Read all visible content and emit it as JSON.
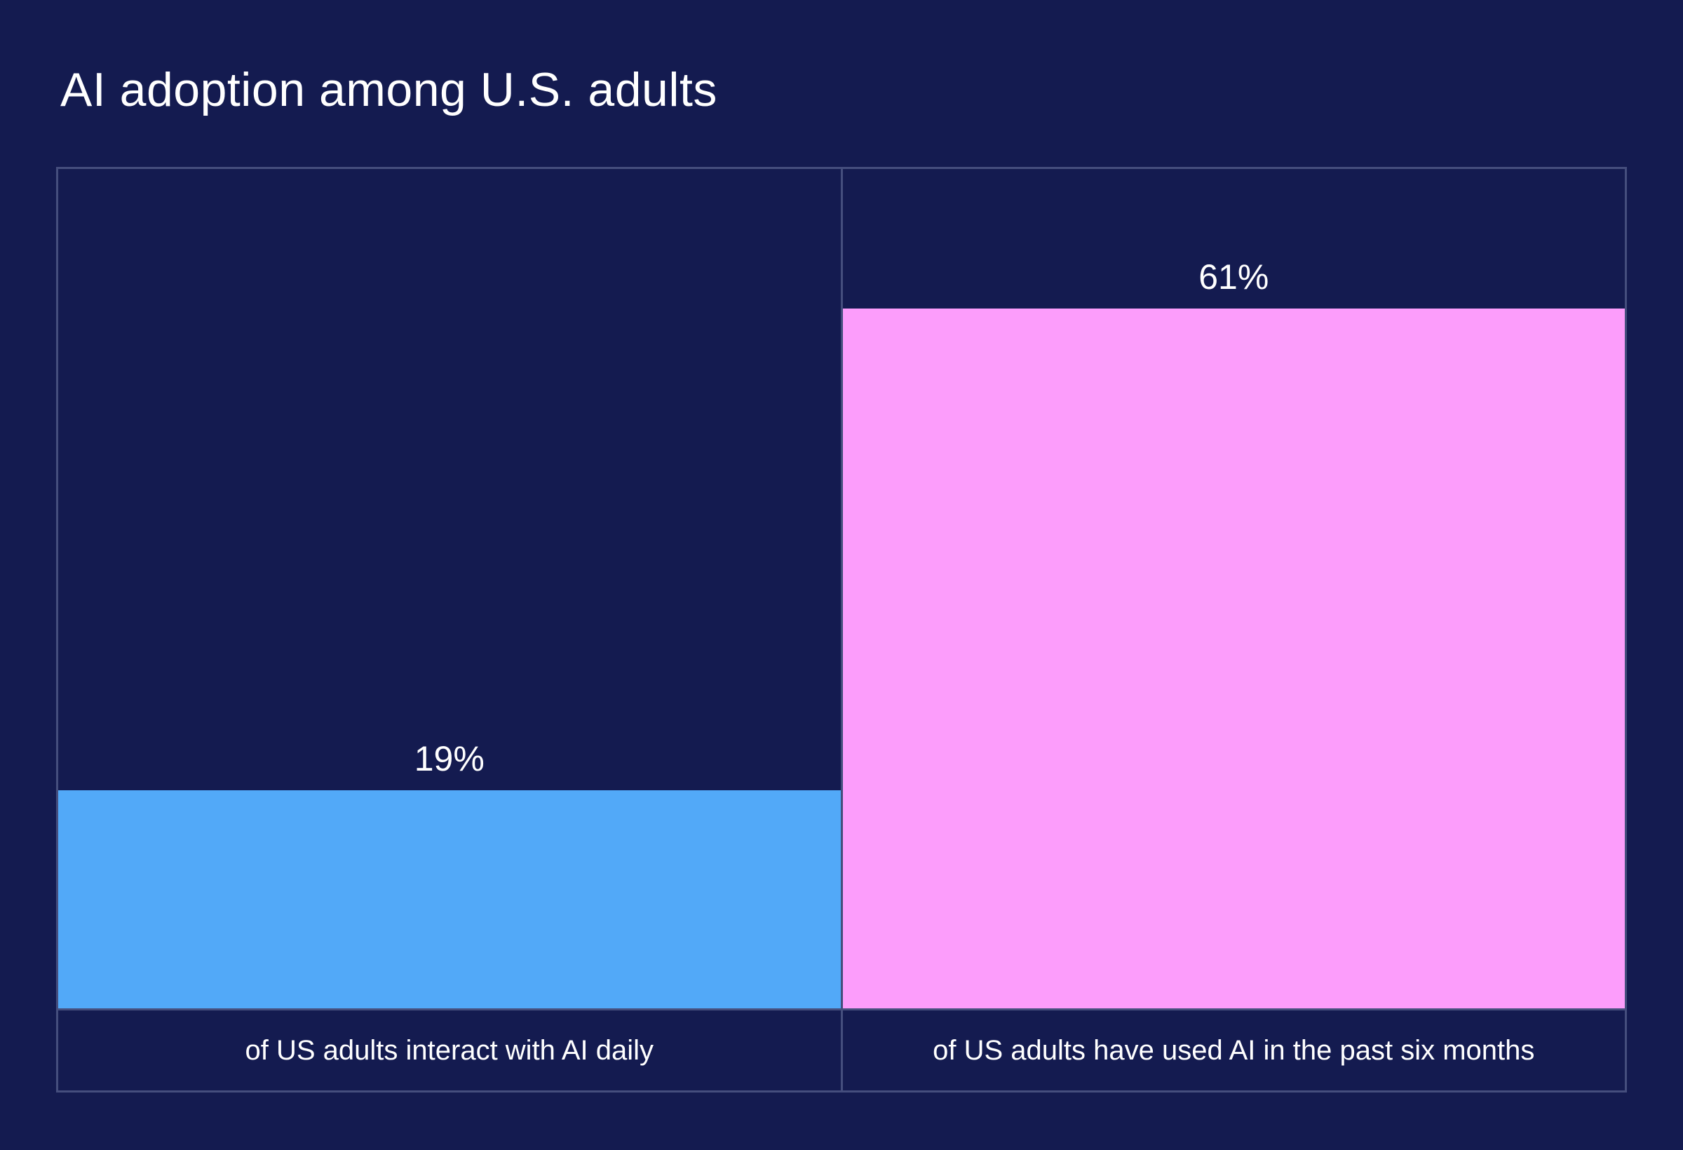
{
  "page": {
    "background_color": "#141B50",
    "panel_border_color": "#454E7D",
    "text_color": "#FFFFFF"
  },
  "chart_data": {
    "type": "bar",
    "title": "AI adoption among U.S. adults",
    "categories": [
      "of US adults interact with AI daily",
      "of US adults have used AI in the past six months"
    ],
    "values": [
      19,
      61
    ],
    "value_labels": [
      "19%",
      "61%"
    ],
    "bar_colors": [
      "#52A9F8",
      "#FC9DFB"
    ],
    "xlabel": "",
    "ylabel": "",
    "ylim": [
      0,
      73
    ],
    "grid": false,
    "legend": false,
    "value_label_position": "above-bar",
    "orientation": "vertical"
  }
}
